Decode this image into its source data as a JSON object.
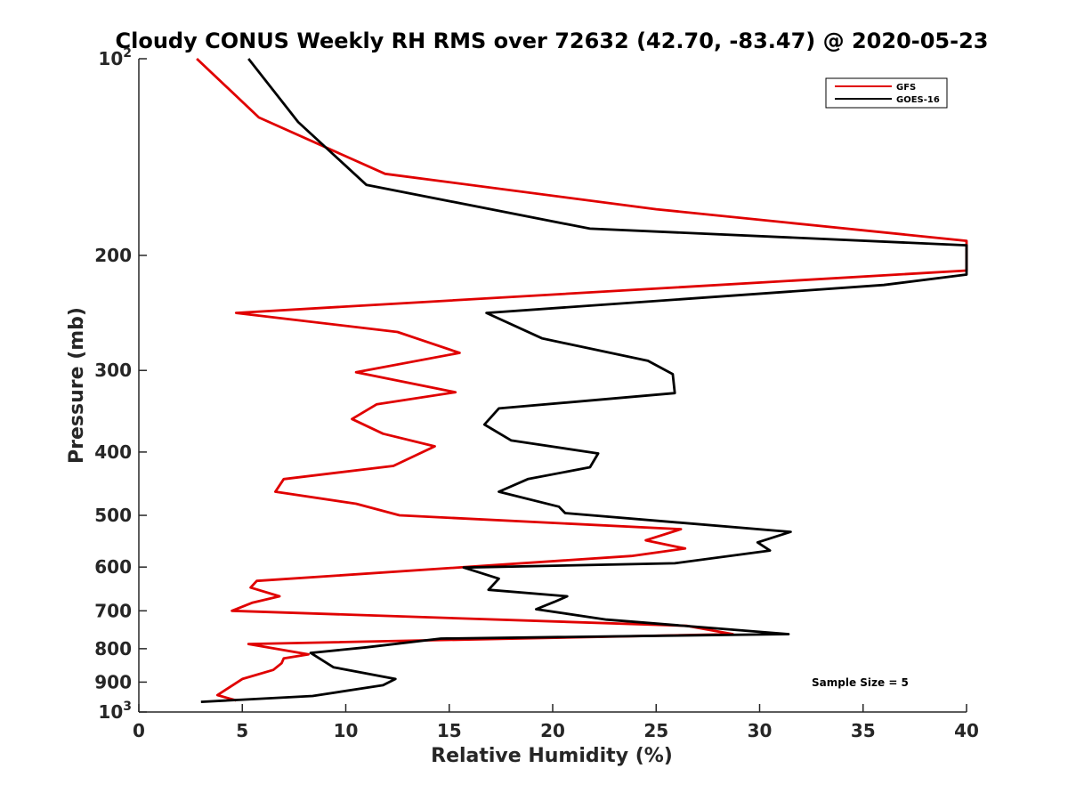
{
  "chart_data": {
    "type": "line",
    "title": "Cloudy CONUS Weekly RH RMS over 72632 (42.70, -83.47) @ 2020-05-23",
    "xlabel": "Relative Humidity (%)",
    "ylabel": "Pressure (mb)",
    "xlim": [
      0,
      40
    ],
    "ylim": [
      100,
      1000
    ],
    "yscale": "log",
    "y_reversed": true,
    "grid": false,
    "legend_position": "top-right",
    "annotation": "Sample Size = 5",
    "x_ticks": [
      {
        "value": 0,
        "label": "0"
      },
      {
        "value": 5,
        "label": "5"
      },
      {
        "value": 10,
        "label": "10"
      },
      {
        "value": 15,
        "label": "15"
      },
      {
        "value": 20,
        "label": "20"
      },
      {
        "value": 25,
        "label": "25"
      },
      {
        "value": 30,
        "label": "30"
      },
      {
        "value": 35,
        "label": "35"
      },
      {
        "value": 40,
        "label": "40"
      }
    ],
    "y_ticks": [
      {
        "value": 100,
        "base": "10",
        "exp": "2"
      },
      {
        "value": 200,
        "base": "200",
        "exp": ""
      },
      {
        "value": 300,
        "base": "300",
        "exp": ""
      },
      {
        "value": 400,
        "base": "400",
        "exp": ""
      },
      {
        "value": 500,
        "base": "500",
        "exp": ""
      },
      {
        "value": 600,
        "base": "600",
        "exp": ""
      },
      {
        "value": 700,
        "base": "700",
        "exp": ""
      },
      {
        "value": 800,
        "base": "800",
        "exp": ""
      },
      {
        "value": 900,
        "base": "900",
        "exp": ""
      },
      {
        "value": 1000,
        "base": "10",
        "exp": "3"
      }
    ],
    "series": [
      {
        "name": "GFS",
        "color": "#e00000",
        "x": [
          2.8,
          5.8,
          11.9,
          25.0,
          40.0,
          40.0,
          4.7,
          12.5,
          15.5,
          10.5,
          15.3,
          11.5,
          10.3,
          11.8,
          14.3,
          12.3,
          7.0,
          6.6,
          10.5,
          12.6,
          26.2,
          24.5,
          26.4,
          23.8,
          5.7,
          5.4,
          6.8,
          5.5,
          4.5,
          26.5,
          28.7,
          5.3,
          8.2,
          7.0,
          6.9,
          6.5,
          5.0,
          4.3,
          3.8,
          4.7
        ],
        "y": [
          100,
          123,
          150,
          170,
          190,
          211,
          245,
          262,
          282,
          302,
          324,
          338,
          356,
          375,
          392,
          420,
          440,
          460,
          480,
          500,
          525,
          546,
          562,
          577,
          630,
          645,
          665,
          680,
          700,
          738,
          760,
          787,
          816,
          828,
          842,
          862,
          890,
          920,
          942,
          960
        ]
      },
      {
        "name": "GOES-16",
        "color": "#000000",
        "x": [
          5.3,
          7.7,
          11.0,
          21.8,
          40.0,
          40.0,
          36.0,
          16.8,
          19.5,
          24.6,
          25.8,
          25.9,
          17.4,
          16.7,
          18.0,
          22.2,
          21.8,
          18.8,
          17.4,
          20.3,
          20.6,
          31.5,
          29.9,
          30.5,
          25.9,
          15.7,
          17.4,
          16.9,
          20.7,
          20.1,
          19.2,
          22.6,
          31.4,
          14.6,
          11.0,
          8.3,
          9.4,
          12.4,
          11.8,
          8.4,
          3.0
        ],
        "y": [
          100,
          125,
          156,
          182,
          193,
          214,
          222,
          245,
          268,
          290,
          304,
          325,
          343,
          363,
          384,
          402,
          422,
          440,
          460,
          485,
          496,
          530,
          550,
          566,
          592,
          601,
          625,
          650,
          665,
          678,
          696,
          722,
          760,
          772,
          796,
          812,
          854,
          890,
          910,
          945,
          965
        ]
      }
    ]
  }
}
